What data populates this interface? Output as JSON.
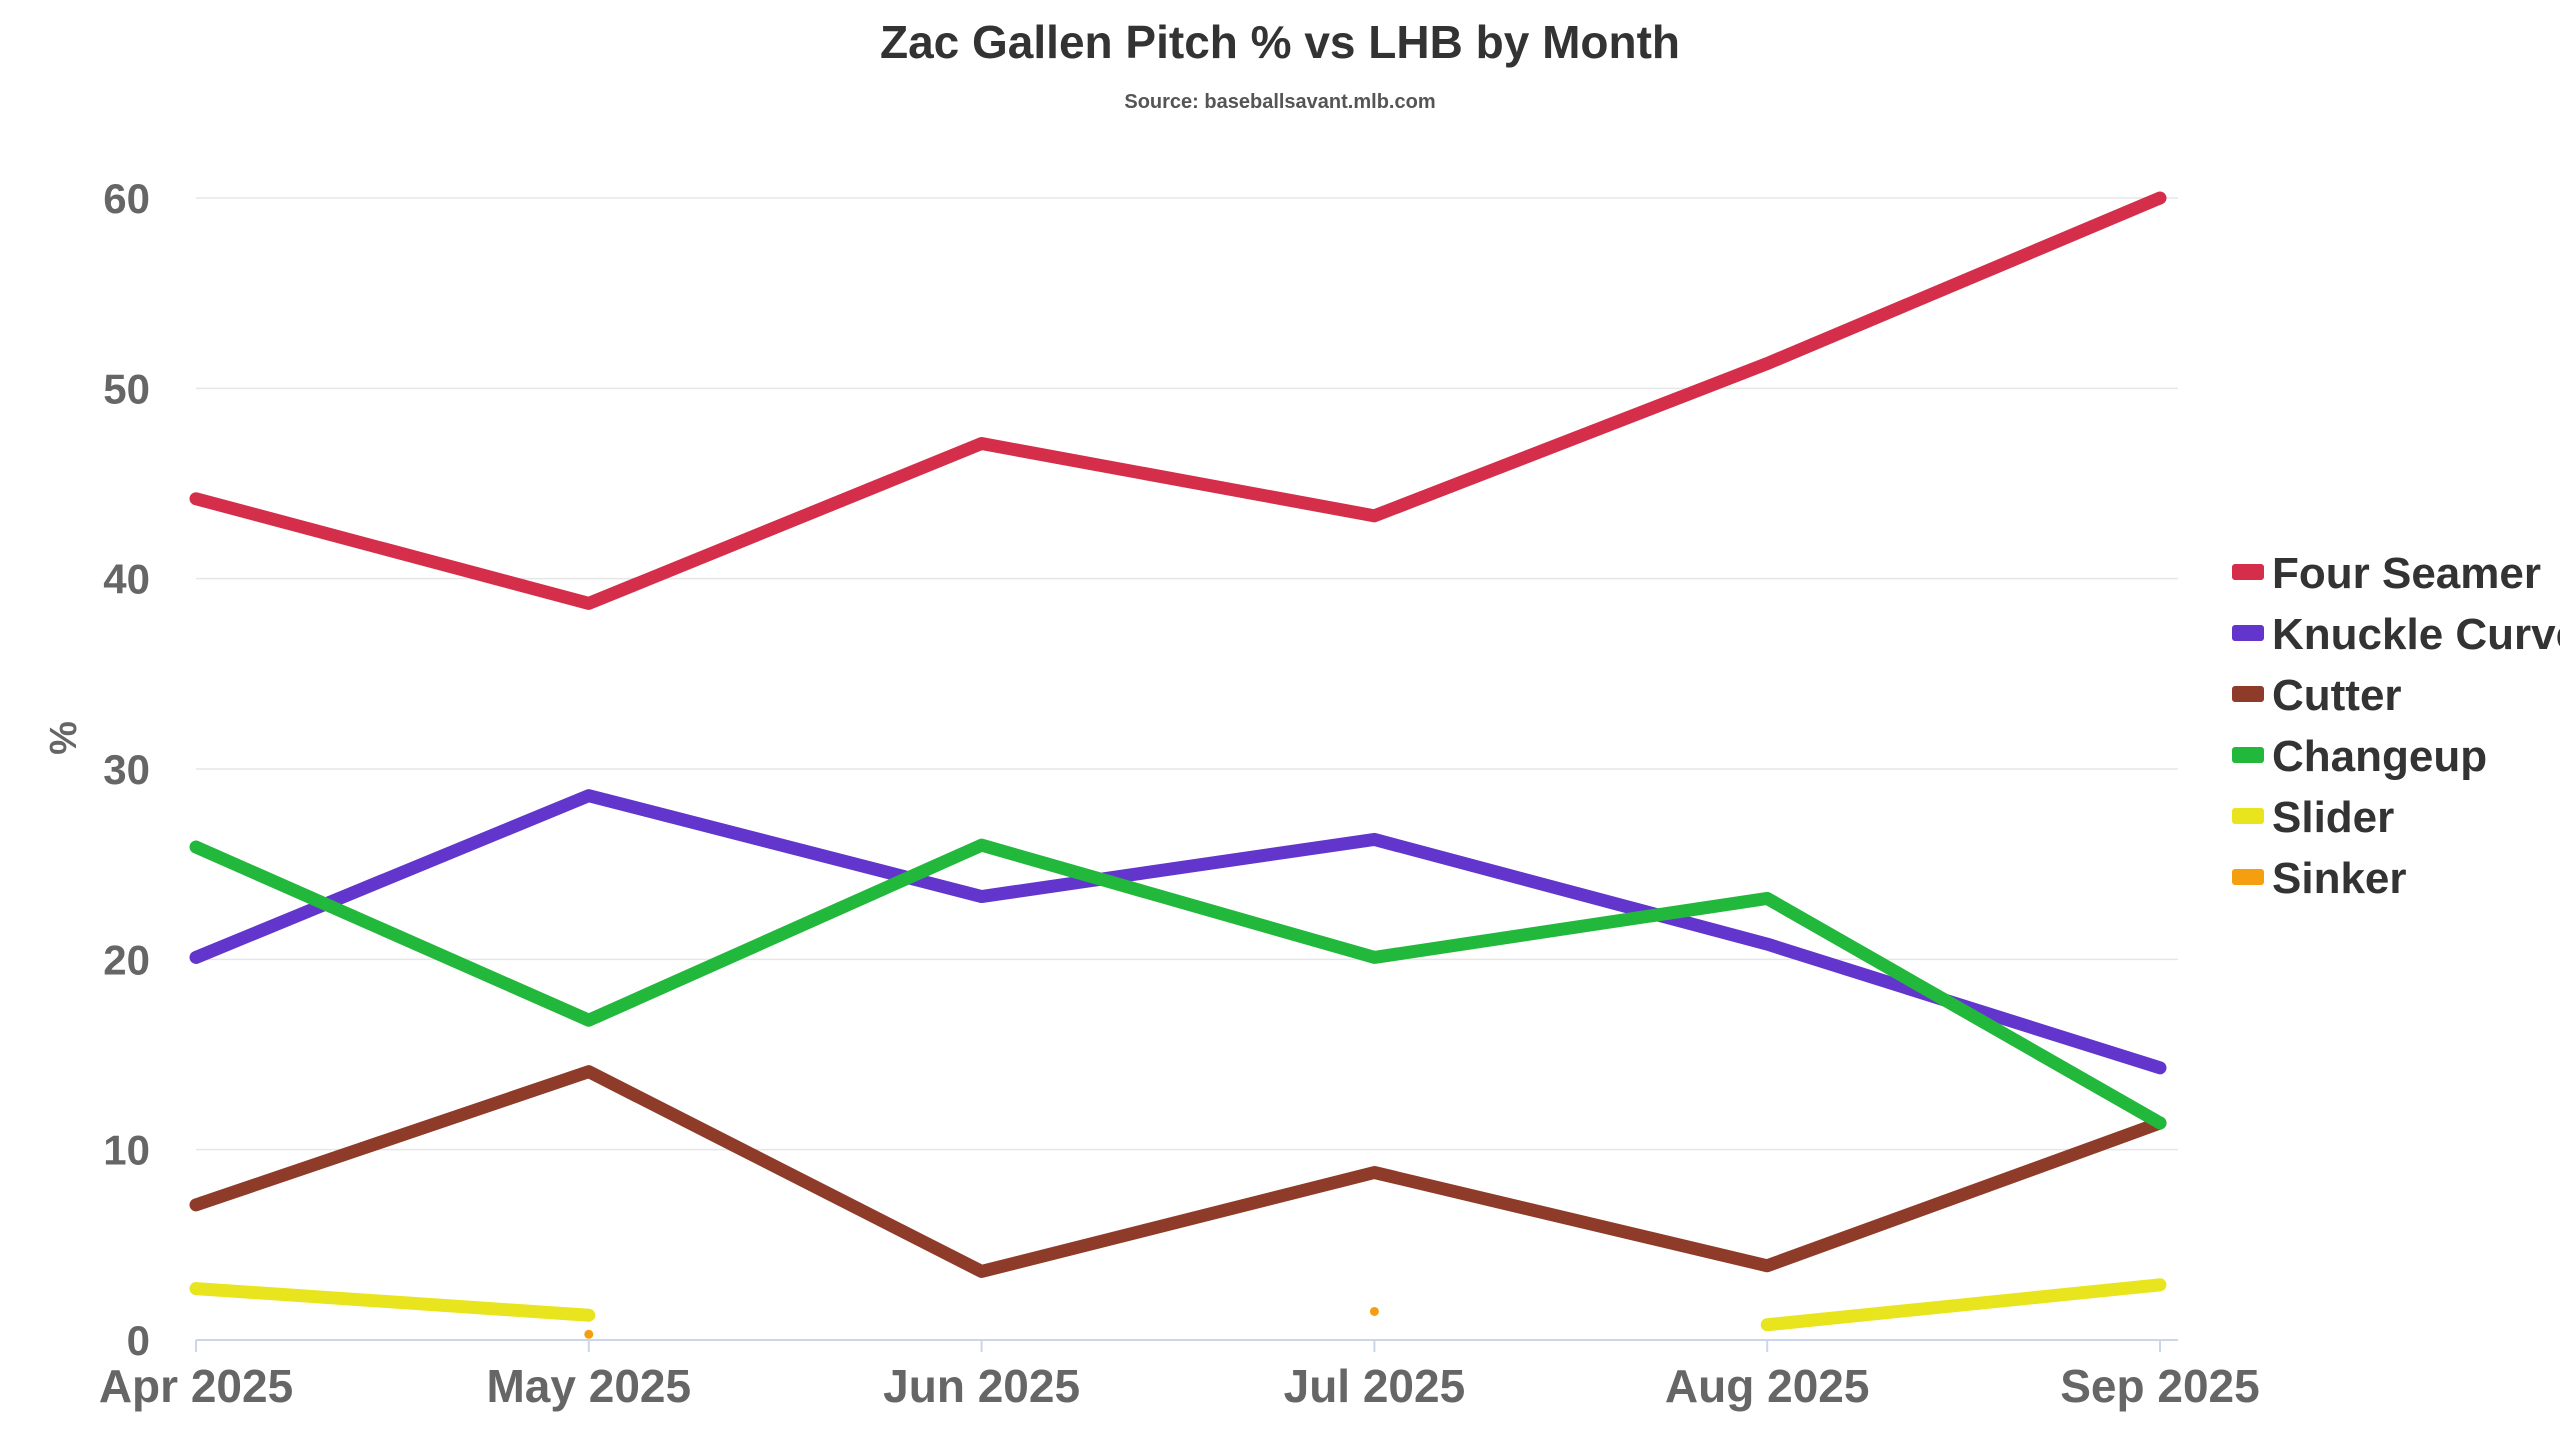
{
  "chart_data": {
    "type": "line",
    "title": "Zac Gallen Pitch % vs LHB by Month",
    "subtitle": "Source: baseballsavant.mlb.com",
    "xlabel": "",
    "ylabel": "%",
    "ylim": [
      0,
      60
    ],
    "yticks": [
      "0",
      "10",
      "20",
      "30",
      "40",
      "50",
      "60"
    ],
    "categories": [
      "Apr 2025",
      "May 2025",
      "Jun 2025",
      "Jul 2025",
      "Aug 2025",
      "Sep 2025"
    ],
    "legend_position": "right",
    "series": [
      {
        "name": "Four Seamer",
        "color": "#d42e4a",
        "values": [
          44.2,
          38.7,
          47.1,
          43.3,
          51.3,
          60.0
        ]
      },
      {
        "name": "Knuckle Curve",
        "color": "#6236cc",
        "values": [
          20.1,
          28.6,
          23.3,
          26.3,
          20.8,
          14.3
        ]
      },
      {
        "name": "Cutter",
        "color": "#8e3b2a",
        "values": [
          7.1,
          14.1,
          3.6,
          8.8,
          3.9,
          11.4
        ]
      },
      {
        "name": "Changeup",
        "color": "#22b83c",
        "values": [
          25.9,
          16.8,
          26.0,
          20.1,
          23.2,
          11.4
        ]
      },
      {
        "name": "Slider",
        "color": "#e8e41e",
        "values": [
          2.7,
          1.3,
          null,
          null,
          0.8,
          2.9
        ]
      },
      {
        "name": "Sinker",
        "color": "#f59f10",
        "values": [
          null,
          0.3,
          null,
          1.5,
          null,
          null
        ]
      }
    ]
  }
}
